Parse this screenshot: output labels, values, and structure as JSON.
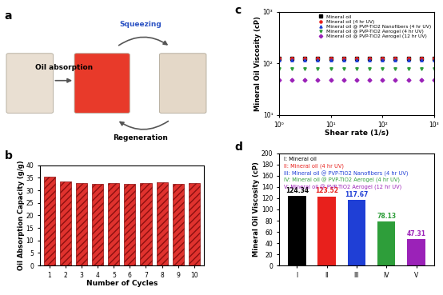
{
  "diagram": {
    "title": "a",
    "texts": [
      "Oil absorption",
      "Squeezing",
      "Regeneration"
    ]
  },
  "chart_data": [
    {
      "title": "b",
      "type": "bar",
      "categories": [
        "1",
        "2",
        "3",
        "4",
        "5",
        "6",
        "7",
        "8",
        "9",
        "10"
      ],
      "values": [
        35.5,
        33.5,
        33.0,
        32.7,
        33.0,
        32.5,
        33.0,
        33.2,
        32.4,
        33.0
      ],
      "color": "#e0322e",
      "xlabel": "Number of Cycles",
      "ylabel": "Oil Absorption Capacity (g/g)",
      "ylim": [
        0,
        40
      ],
      "yticks": [
        0,
        5,
        10,
        15,
        20,
        25,
        30,
        35,
        40
      ]
    },
    {
      "title": "c",
      "type": "scatter",
      "log": true,
      "x": [
        1,
        1.78,
        3.16,
        5.62,
        10,
        17.8,
        31.6,
        56.2,
        100,
        178,
        316,
        562,
        1000
      ],
      "series": [
        {
          "name": "Mineral oil",
          "color": "#000000",
          "marker": "square",
          "values": [
            124.3,
            124.3,
            124.3,
            124.3,
            124.3,
            124.3,
            124.3,
            124.3,
            124.3,
            124.3,
            124.3,
            124.3,
            124.3
          ]
        },
        {
          "name": "Mineral oil (4 hr UV)",
          "color": "#e8201c",
          "marker": "circle",
          "values": [
            123.5,
            123.5,
            123.5,
            123.5,
            123.5,
            123.5,
            123.5,
            123.5,
            123.5,
            123.5,
            123.5,
            123.5,
            123.5
          ]
        },
        {
          "name": "Mineral oil @ PVP-TiO2 Nanofibers (4 hr UV)",
          "color": "#1f3fd6",
          "marker": "triangle_up",
          "values": [
            117.7,
            117.7,
            117.7,
            117.7,
            117.7,
            117.7,
            117.7,
            117.7,
            117.7,
            117.7,
            117.7,
            117.7,
            117.7
          ]
        },
        {
          "name": "Mineral oil @ PVP-TiO2 Aerogel (4 hr UV)",
          "color": "#2e9e3a",
          "marker": "triangle_down",
          "values": [
            78.1,
            78.1,
            78.1,
            78.1,
            78.1,
            78.1,
            78.1,
            78.1,
            78.1,
            78.1,
            78.1,
            78.1,
            78.1
          ]
        },
        {
          "name": "Mineral oil @ PVP-TiO2 Aerogel (12 hr UV)",
          "color": "#9b22b8",
          "marker": "diamond",
          "values": [
            47.3,
            47.3,
            47.3,
            47.3,
            47.3,
            47.3,
            47.3,
            47.3,
            47.3,
            47.3,
            47.3,
            47.3,
            47.3
          ]
        }
      ],
      "xlabel": "Shear rate (1/s)",
      "ylabel": "Mineral Oil Viscosity (cP)",
      "xlim": [
        1,
        1000
      ],
      "ylim": [
        10,
        1000
      ],
      "xticks": [
        {
          "value": 1,
          "label": "10⁰"
        },
        {
          "value": 10,
          "label": "10¹"
        },
        {
          "value": 100,
          "label": "10²"
        },
        {
          "value": 1000,
          "label": "10³"
        }
      ],
      "yticks": [
        {
          "value": 10,
          "label": "10¹"
        },
        {
          "value": 100,
          "label": "10²"
        },
        {
          "value": 1000,
          "label": "10³"
        }
      ],
      "legend": "upper right"
    },
    {
      "title": "d",
      "type": "bar",
      "categories": [
        "I",
        "II",
        "III",
        "IV",
        "V"
      ],
      "values": [
        124.34,
        123.52,
        117.67,
        78.13,
        47.31
      ],
      "colors": [
        "#000000",
        "#e8201c",
        "#1f3fd6",
        "#2e9e3a",
        "#9b22b8"
      ],
      "data_labels": true,
      "annotations": [
        "I: Mineral oil",
        "II: Mineral oil (4 hr UV)",
        "III: Mineral oil @ PVP-TiO2 Nanofibers (4 hr UV)",
        "IV: Mineral oil @ PVP-TiO2 Aerogel (4 hr UV)",
        "V: Mineral oil @ PVP-TiO2 Aerogel (12 hr UV)"
      ],
      "ylabel": "Mineral Oil Viscosity (cP)",
      "ylim": [
        0,
        200
      ],
      "yticks": [
        0,
        20,
        40,
        60,
        80,
        100,
        120,
        140,
        160,
        180,
        200
      ]
    }
  ]
}
